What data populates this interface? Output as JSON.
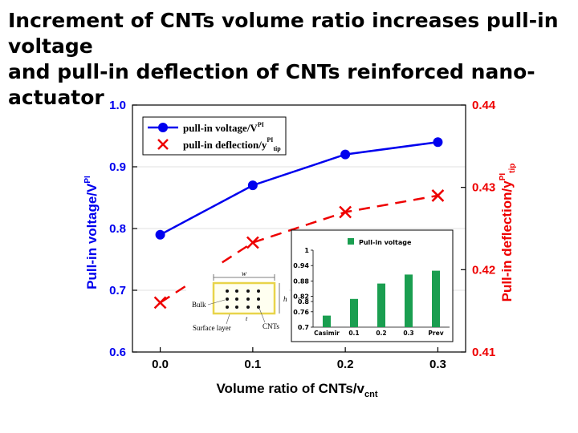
{
  "slide": {
    "title_lines": [
      "Increment of CNTs volume ratio increases pull-in",
      "voltage",
      "and pull-in deflection of CNTs reinforced nano-",
      "actuator"
    ]
  },
  "chart_data": {
    "type": "line",
    "x": [
      0.0,
      0.1,
      0.2,
      0.3
    ],
    "xticks": [
      "0.0",
      "0.1",
      "0.2",
      "0.3"
    ],
    "xlim": [
      -0.03,
      0.33
    ],
    "xlabel": {
      "main": "Volume ratio of CNTs/v",
      "sub": "cnt"
    },
    "ylabel_left": {
      "main": "Pull-in voltage/V",
      "sup": "PI"
    },
    "ylabel_right": {
      "main": "Pull-in deflection/y",
      "sup": "PI",
      "sub": "tip"
    },
    "ylim_left": [
      0.6,
      1.0
    ],
    "ylim_right": [
      0.41,
      0.44
    ],
    "yticks_left": [
      "0.6",
      "0.7",
      "0.8",
      "0.9",
      "1.0"
    ],
    "yticks_right": [
      "0.41",
      "0.42",
      "0.43",
      "0.44"
    ],
    "series": [
      {
        "name": "pull-in voltage/V",
        "name_sup": "PI",
        "axis": "left",
        "color": "#0000ee",
        "style": "solid-circle",
        "values": [
          0.79,
          0.87,
          0.92,
          0.94
        ]
      },
      {
        "name": "pull-in deflection/y",
        "name_sup": "PI",
        "name_sub": "tip",
        "axis": "right",
        "color": "#ee0000",
        "style": "dashed-cross",
        "values": [
          0.416,
          0.4233,
          0.427,
          0.429
        ]
      }
    ],
    "legend": "top-left",
    "inset_chart": {
      "type": "bar",
      "legend": "Pull-in voltage",
      "color": "#1a9e50",
      "categories": [
        "Casimir",
        "0.1",
        "0.2",
        "0.3",
        "Prev"
      ],
      "values": [
        0.745,
        0.81,
        0.87,
        0.905,
        0.92
      ],
      "ylim": [
        0.7,
        1.0
      ],
      "yticks": [
        "0.7",
        "0.76",
        "0.8",
        "0.82",
        "0.88",
        "0.94",
        "1"
      ],
      "ytick_values": [
        0.7,
        0.76,
        0.8,
        0.82,
        0.88,
        0.94,
        1.0
      ]
    },
    "inset_diagram": {
      "labels": {
        "width": "w",
        "height": "h",
        "thickness": "t",
        "bulk": "Bulk",
        "cnts": "CNTs",
        "surface": "Surface layer"
      }
    }
  }
}
